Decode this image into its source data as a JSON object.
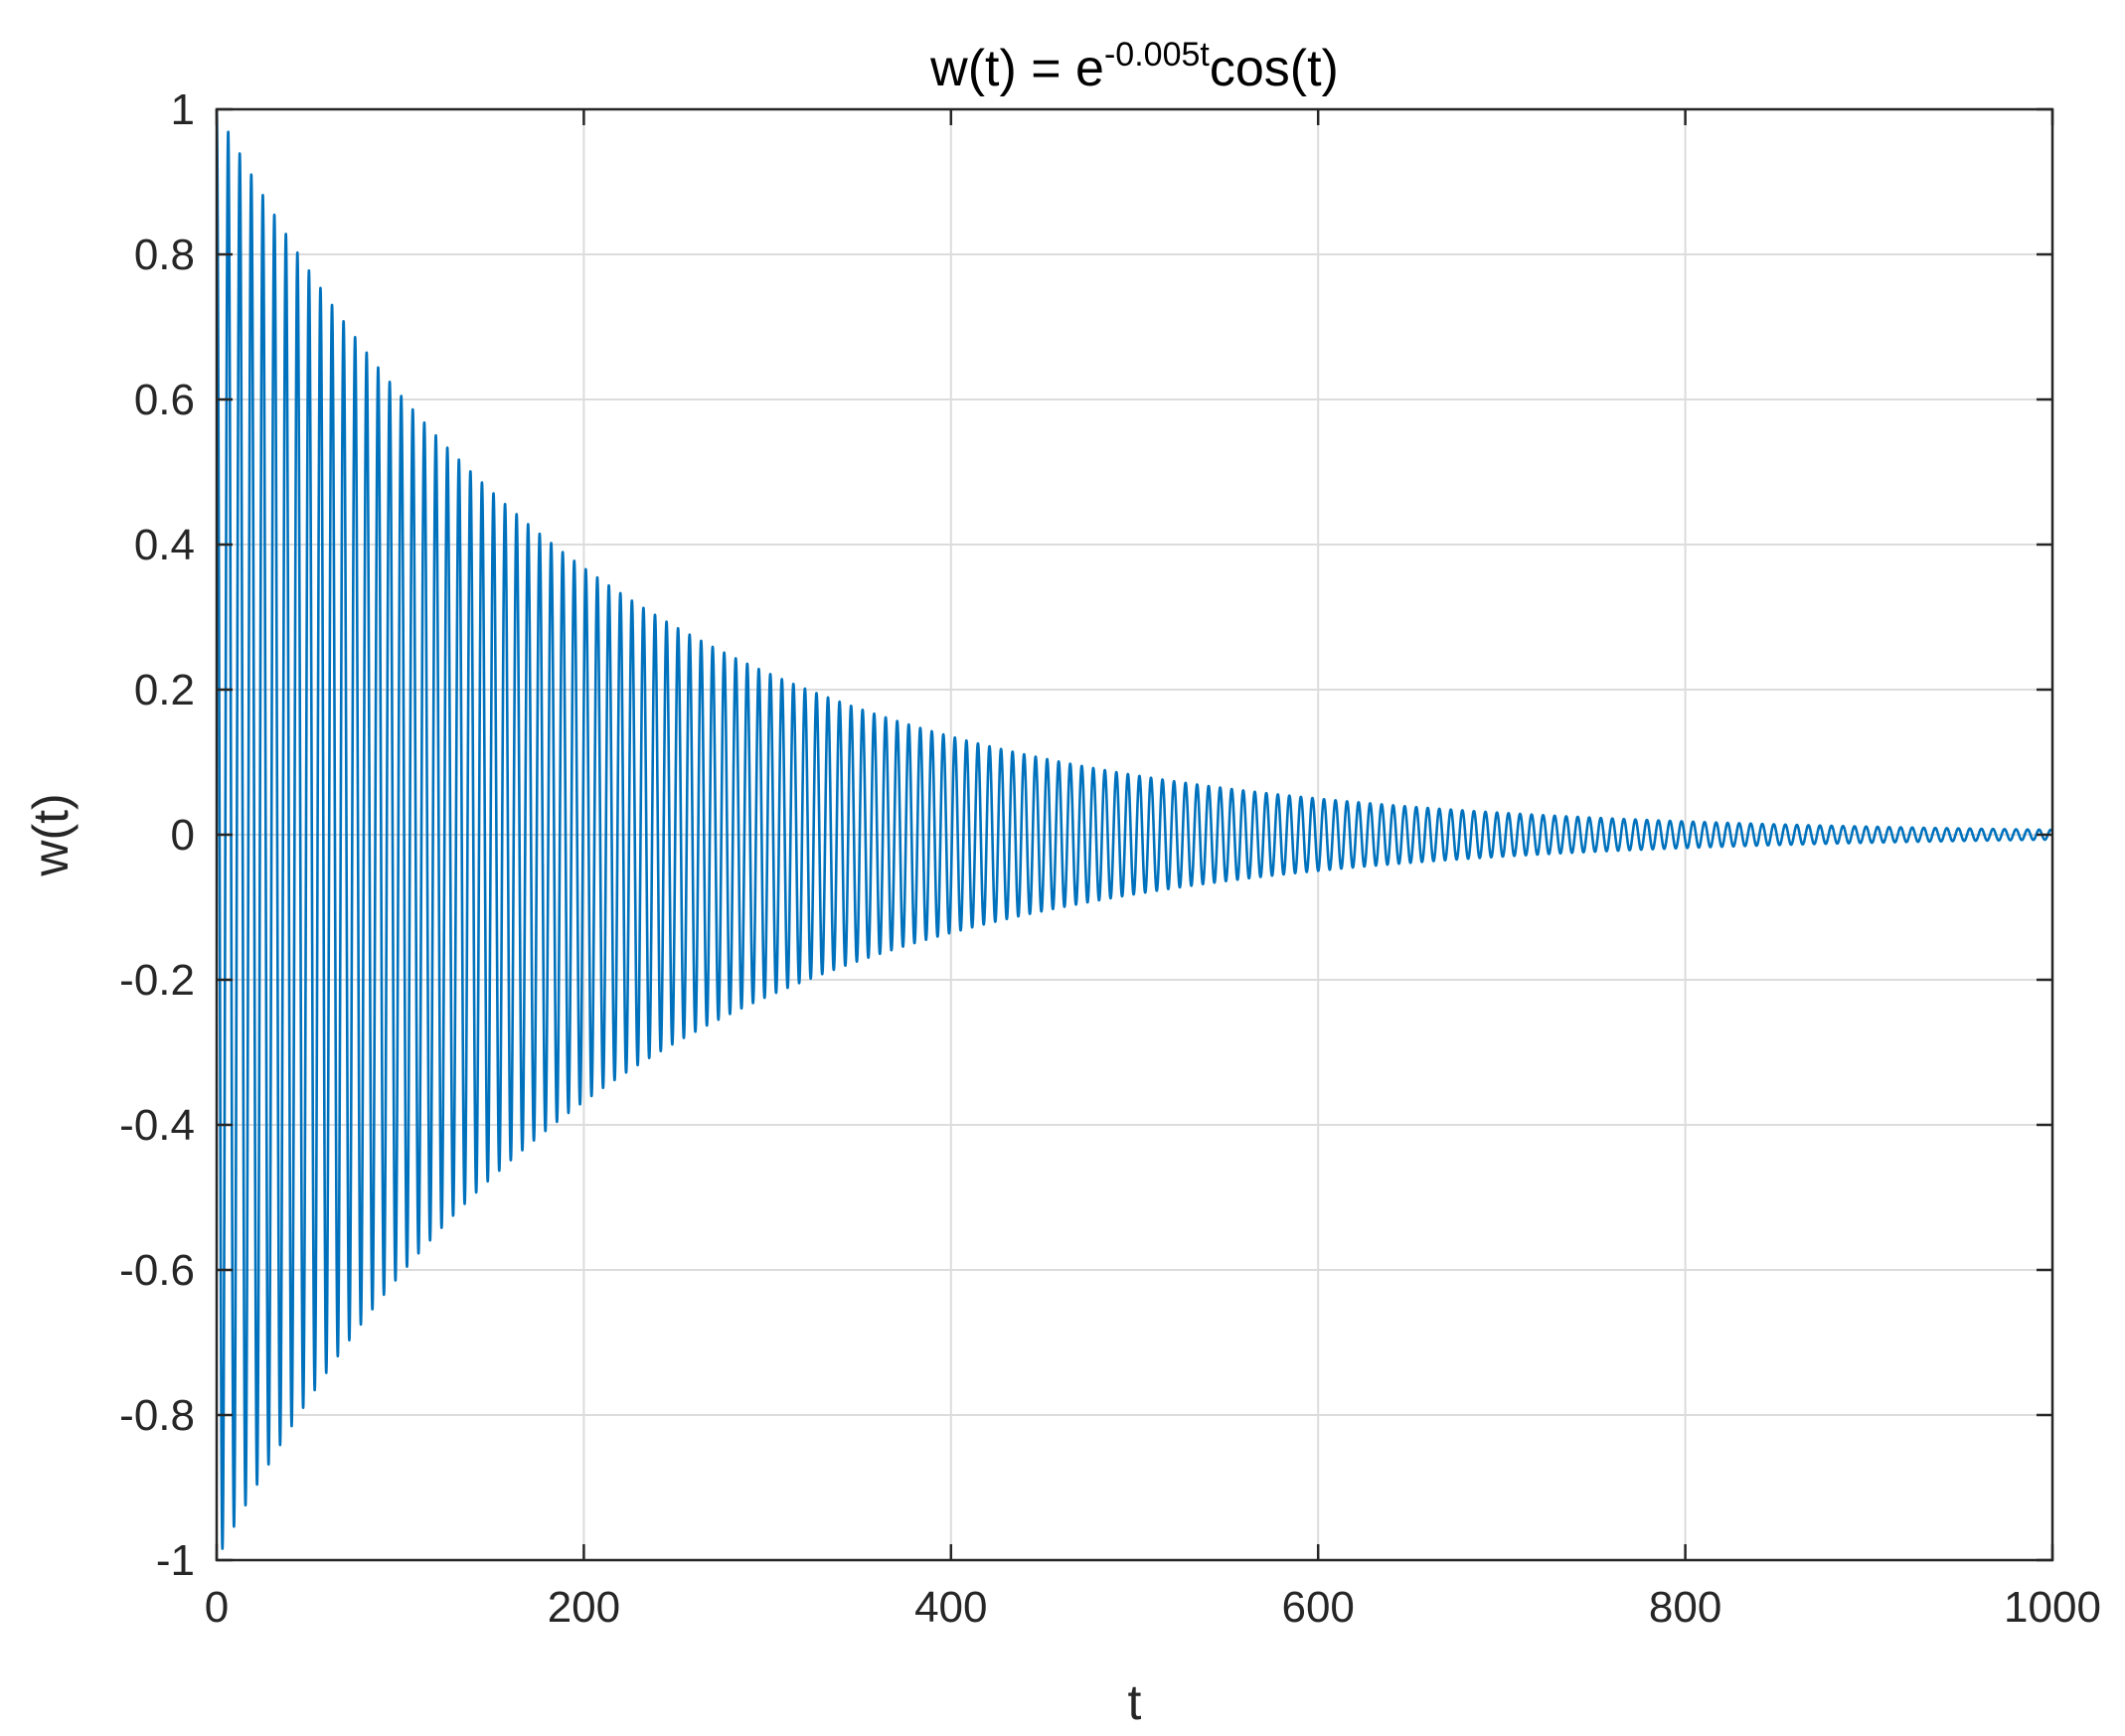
{
  "chart_data": {
    "type": "line",
    "title": {
      "base": "w(t) = e",
      "superscript": "-0.005t",
      "suffix": "cos(t)"
    },
    "xlabel": "t",
    "ylabel": "w(t)",
    "xlim": [
      0,
      1000
    ],
    "ylim": [
      -1,
      1
    ],
    "xticks": [
      0,
      200,
      400,
      600,
      800,
      1000
    ],
    "xtick_labels": [
      "0",
      "200",
      "400",
      "600",
      "800",
      "1000"
    ],
    "yticks": [
      -1,
      -0.8,
      -0.6,
      -0.4,
      -0.2,
      0,
      0.2,
      0.4,
      0.6,
      0.8,
      1
    ],
    "ytick_labels": [
      "-1",
      "-0.8",
      "-0.6",
      "-0.4",
      "-0.2",
      "0",
      "0.2",
      "0.4",
      "0.6",
      "0.8",
      "1"
    ],
    "grid": true,
    "series": [
      {
        "function": "exp(-0.005*t)*cos(t)",
        "decay_rate": 0.005,
        "angular_frequency": 1,
        "t_start": 0,
        "t_end": 1000,
        "color": "#0072BD"
      }
    ]
  },
  "colors": {
    "grid": "#dcdcdc",
    "axis": "#262626",
    "line": "#0072BD",
    "background": "#ffffff"
  }
}
